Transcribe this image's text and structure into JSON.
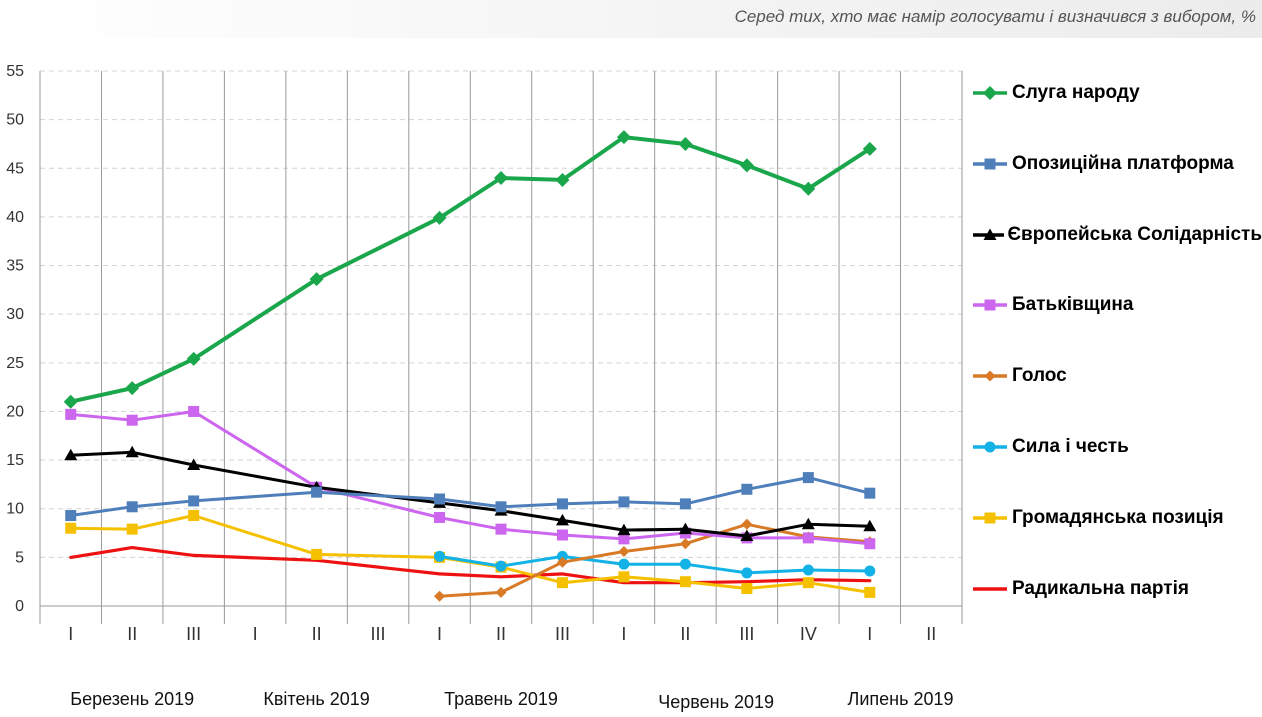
{
  "chart_data": {
    "type": "line",
    "title": "",
    "subtitle": "Серед тих, хто має намір голосувати і визначився з вибором, %",
    "xlabel": "",
    "ylabel": "",
    "ylim": [
      0,
      55
    ],
    "yticks": [
      0,
      5,
      10,
      15,
      20,
      25,
      30,
      35,
      40,
      45,
      50,
      55
    ],
    "grid": "dashed-horizontal",
    "legend_position": "right",
    "categories": [
      "I",
      "II",
      "III",
      "I",
      "II",
      "III",
      "I",
      "II",
      "III",
      "I",
      "II",
      "III",
      "IV",
      "I",
      "II"
    ],
    "months": [
      {
        "label": "Березень 2019",
        "start": 0,
        "end": 2
      },
      {
        "label": "Квітень 2019",
        "start": 3,
        "end": 5
      },
      {
        "label": "Травень 2019",
        "start": 6,
        "end": 8
      },
      {
        "label": "Червень 2019",
        "start": 9,
        "end": 12
      },
      {
        "label": "Липень 2019",
        "start": 13,
        "end": 14
      }
    ],
    "series": [
      {
        "name": "Слуга народу",
        "color": "#1aa64b",
        "marker": "diamond",
        "values": [
          21.0,
          22.4,
          25.4,
          null,
          33.6,
          null,
          39.9,
          44.0,
          43.8,
          48.2,
          47.5,
          45.3,
          42.9,
          47.0,
          null
        ]
      },
      {
        "name": "Опозиційна платформа",
        "color": "#4f7fba",
        "marker": "square",
        "values": [
          9.3,
          10.2,
          10.8,
          null,
          11.7,
          null,
          11.0,
          10.2,
          10.5,
          10.7,
          10.5,
          12.0,
          13.2,
          11.6,
          null
        ]
      },
      {
        "name": "Європейська Солідарність",
        "color": "#000000",
        "marker": "triangle",
        "values": [
          15.5,
          15.8,
          14.5,
          null,
          12.2,
          null,
          10.6,
          9.8,
          8.8,
          7.8,
          7.9,
          7.2,
          8.4,
          8.2,
          null
        ]
      },
      {
        "name": "Батьківщина",
        "color": "#cc66ee",
        "marker": "square",
        "values": [
          19.7,
          19.1,
          20.0,
          null,
          12.2,
          null,
          9.1,
          7.9,
          7.3,
          6.9,
          7.5,
          7.0,
          7.0,
          6.4,
          null
        ]
      },
      {
        "name": "Голос",
        "color": "#d87a26",
        "marker": "diamond-small",
        "values": [
          null,
          null,
          null,
          null,
          null,
          null,
          1.0,
          1.4,
          4.5,
          5.6,
          6.4,
          8.4,
          7.1,
          6.6,
          null
        ]
      },
      {
        "name": "Сила і честь",
        "color": "#12b2e6",
        "marker": "circle",
        "values": [
          null,
          null,
          null,
          null,
          null,
          null,
          5.1,
          4.1,
          5.1,
          4.3,
          4.3,
          3.4,
          3.7,
          3.6,
          null
        ]
      },
      {
        "name": "Громадянська позиція",
        "color": "#f5c000",
        "marker": "square",
        "values": [
          8.0,
          7.9,
          9.3,
          null,
          5.3,
          null,
          5.0,
          4.0,
          2.4,
          3.0,
          2.5,
          1.8,
          2.4,
          1.4,
          null
        ]
      },
      {
        "name": "Радикальна партія",
        "color": "#ee1111",
        "marker": "none",
        "values": [
          5.0,
          6.0,
          5.2,
          null,
          4.7,
          null,
          3.3,
          3.0,
          3.3,
          2.4,
          2.4,
          2.5,
          2.7,
          2.6,
          null
        ]
      }
    ]
  }
}
